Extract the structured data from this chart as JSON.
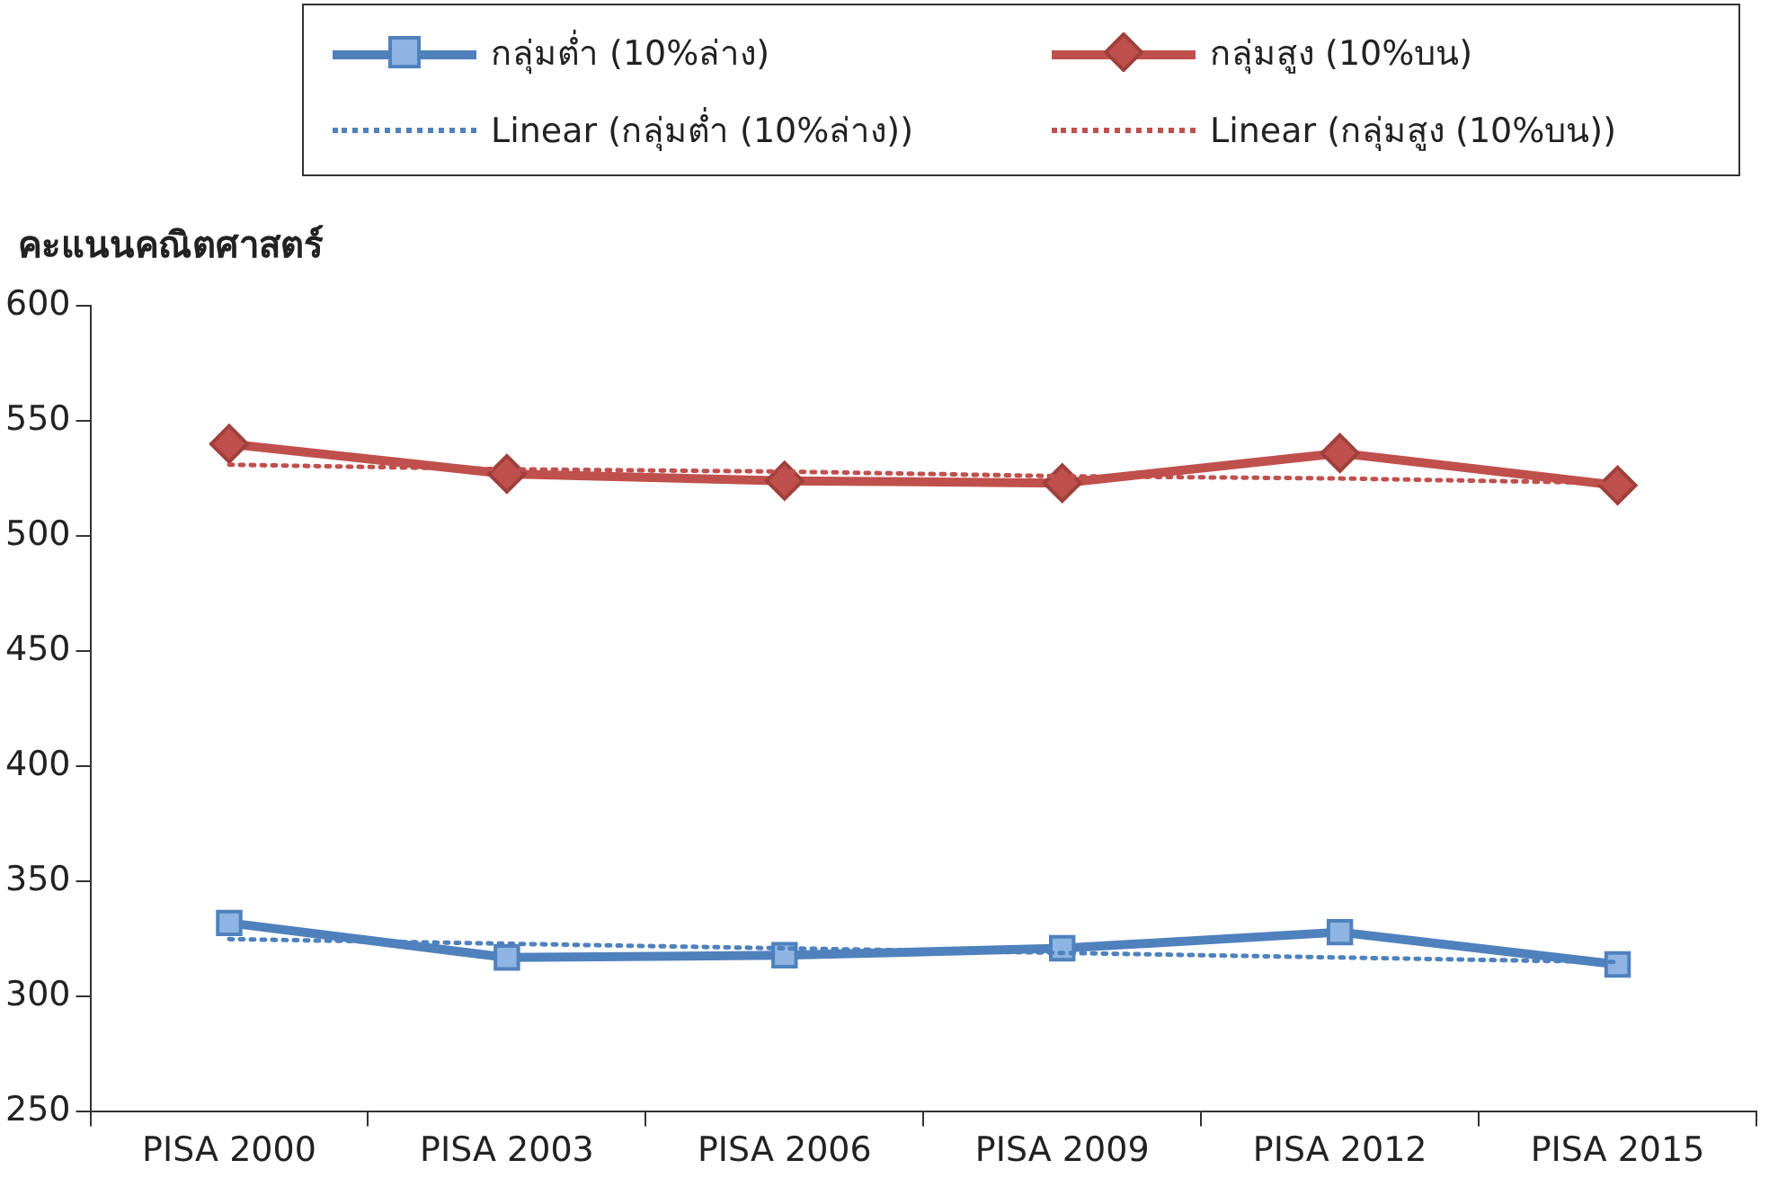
{
  "chart_data": {
    "type": "line",
    "ylabel": "คะแนนคณิตศาสตร์",
    "categories": [
      "PISA 2000",
      "PISA 2003",
      "PISA 2006",
      "PISA 2009",
      "PISA 2012",
      "PISA 2015"
    ],
    "ylim": [
      250,
      600
    ],
    "yticks": [
      250,
      300,
      350,
      400,
      450,
      500,
      550,
      600
    ],
    "grid": false,
    "legend": "top",
    "series": [
      {
        "name": "กลุ่มต่ำ (10%ล่าง)",
        "color": "#4f81bd",
        "marker": "square",
        "line_style": "solid",
        "values": [
          332,
          317,
          318,
          321,
          328,
          314
        ]
      },
      {
        "name": "กลุ่มสูง (10%บน)",
        "color": "#c0504d",
        "marker": "diamond",
        "line_style": "solid",
        "values": [
          540,
          527,
          524,
          523,
          536,
          522
        ]
      },
      {
        "name": "Linear (กลุ่มต่ำ (10%ล่าง))",
        "color": "#4f81bd",
        "marker": "none",
        "line_style": "dotted",
        "values": [
          325,
          323,
          321,
          319,
          317,
          315
        ]
      },
      {
        "name": "Linear (กลุ่มสูง (10%บน))",
        "color": "#c0504d",
        "marker": "none",
        "line_style": "dotted",
        "values": [
          531,
          529,
          528,
          526,
          525,
          523
        ]
      }
    ]
  }
}
